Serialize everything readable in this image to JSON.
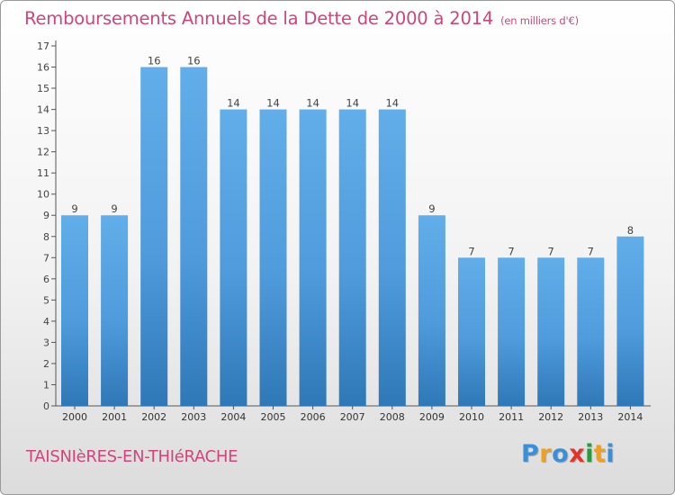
{
  "title": "Remboursements Annuels de la Dette de 2000 à 2014",
  "unit": "(en milliers d'€)",
  "town": "TAISNIèRES-EN-THIéRACHE",
  "logo": {
    "letters": [
      "P",
      "r",
      "o",
      "x",
      "i",
      "t",
      "i"
    ],
    "colors": [
      "#3a8fd8",
      "#f0a020",
      "#3a8fd8",
      "#e0352b",
      "#2a9b3a",
      "#f0a020",
      "#3a8fd8"
    ]
  },
  "colors": {
    "bar": "#5aa5e3",
    "bar_dark": "#2f78b8",
    "title": "#d1457a"
  },
  "chart_data": {
    "type": "bar",
    "title": "Remboursements Annuels de la Dette de 2000 à 2014",
    "xlabel": "",
    "ylabel": "",
    "ylim": [
      0,
      17
    ],
    "yticks": [
      "0",
      "1",
      "2",
      "3",
      "4",
      "5",
      "6",
      "7",
      "8",
      "9",
      "10",
      "11",
      "12",
      "13",
      "14",
      "15",
      "16",
      "17"
    ],
    "grid": false,
    "categories": [
      "2000",
      "2001",
      "2002",
      "2003",
      "2004",
      "2005",
      "2006",
      "2007",
      "2008",
      "2009",
      "2010",
      "2011",
      "2012",
      "2013",
      "2014"
    ],
    "values": [
      9,
      9,
      16,
      16,
      14,
      14,
      14,
      14,
      14,
      9,
      7,
      7,
      7,
      7,
      8
    ]
  }
}
